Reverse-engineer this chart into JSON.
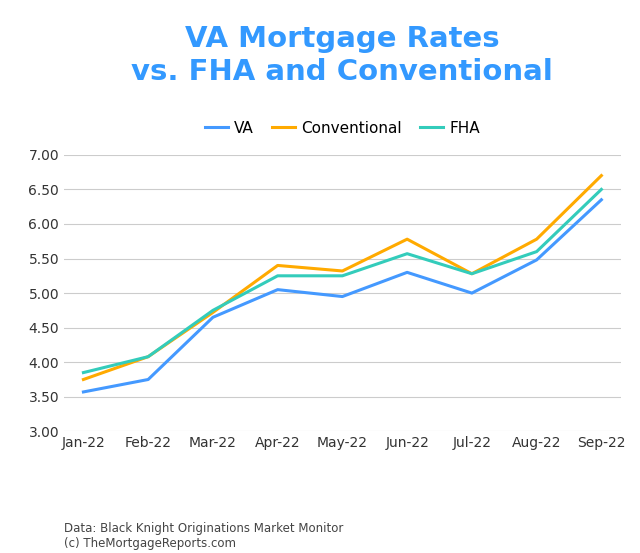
{
  "title": "VA Mortgage Rates\nvs. FHA and Conventional",
  "title_color": "#3399ff",
  "title_fontsize": 21,
  "title_fontweight": "bold",
  "months": [
    "Jan-22",
    "Feb-22",
    "Mar-22",
    "Apr-22",
    "May-22",
    "Jun-22",
    "Jul-22",
    "Aug-22",
    "Sep-22"
  ],
  "va": [
    3.57,
    3.75,
    4.65,
    5.05,
    4.95,
    5.3,
    5.0,
    5.48,
    6.35
  ],
  "conventional": [
    3.75,
    4.08,
    4.72,
    5.4,
    5.32,
    5.78,
    5.28,
    5.78,
    6.7
  ],
  "fha": [
    3.85,
    4.08,
    4.75,
    5.25,
    5.25,
    5.57,
    5.28,
    5.6,
    6.5
  ],
  "va_color": "#4499ff",
  "conventional_color": "#ffaa00",
  "fha_color": "#33ccbb",
  "line_width": 2.2,
  "ylim": [
    3.0,
    7.0
  ],
  "yticks": [
    3.0,
    3.5,
    4.0,
    4.5,
    5.0,
    5.5,
    6.0,
    6.5,
    7.0
  ],
  "legend_labels": [
    "VA",
    "Conventional",
    "FHA"
  ],
  "source_text": "Data: Black Knight Originations Market Monitor\n(c) TheMortgageReports.com",
  "background_color": "#ffffff",
  "grid_color": "#cccccc"
}
